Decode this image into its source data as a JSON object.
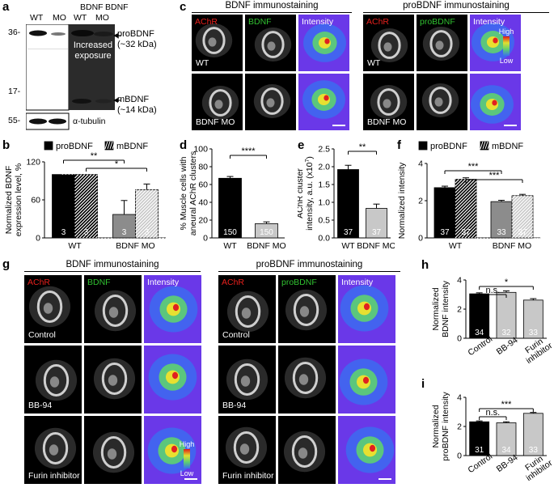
{
  "panels": {
    "a": {
      "label": "a",
      "lanes": [
        "WT",
        "MO",
        "WT",
        "MO"
      ],
      "bdnf_header": "BDNF",
      "markers": [
        "36-",
        "17-",
        "55-"
      ],
      "exposure_text": [
        "Increased",
        "exposure"
      ],
      "bands": [
        {
          "name": "proBDNF",
          "size": "(~32 kDa)"
        },
        {
          "name": "mBDNF",
          "size": "(~14 kDa)"
        },
        {
          "name": "α-tubulin",
          "size": ""
        }
      ]
    },
    "c": {
      "label": "c",
      "groups": [
        {
          "title": "BDNF immunostaining",
          "channels": [
            "AChR",
            "BDNF",
            "Intensity"
          ]
        },
        {
          "title": "proBDNF immunostaining",
          "channels": [
            "AChR",
            "proBDNF",
            "Intensity"
          ]
        }
      ],
      "rows": [
        "WT",
        "BDNF MO"
      ],
      "scale": {
        "high": "High",
        "low": "Low"
      }
    },
    "g": {
      "label": "g",
      "groups": [
        {
          "title": "BDNF immunostaining",
          "channels": [
            "AChR",
            "BDNF",
            "Intensity"
          ]
        },
        {
          "title": "proBDNF immunostaining",
          "channels": [
            "AChR",
            "proBDNF",
            "Intensity"
          ]
        }
      ],
      "rows": [
        "Control",
        "BB-94",
        "Furin inhibitor"
      ],
      "scale": {
        "high": "High",
        "low": "Low"
      }
    }
  },
  "chart_data": [
    {
      "panel": "b",
      "type": "bar",
      "ylabel": [
        "Normalized BDNF",
        "expression level, %"
      ],
      "ylim": [
        0,
        120
      ],
      "yticks": [
        0,
        60,
        120
      ],
      "legend": [
        "proBDNF",
        "mBDNF"
      ],
      "categories": [
        "WT",
        "BDNF MO"
      ],
      "series": [
        {
          "name": "proBDNF",
          "values": [
            100,
            37
          ],
          "errors": [
            0,
            22
          ],
          "n": [
            3,
            3
          ]
        },
        {
          "name": "mBDNF",
          "values": [
            100,
            76
          ],
          "errors": [
            0,
            9
          ],
          "n": [
            3,
            3
          ]
        }
      ],
      "significance": [
        "**",
        "*"
      ]
    },
    {
      "panel": "d",
      "type": "bar",
      "ylabel": [
        "% Muscle cells with",
        "aneural AChR clusters"
      ],
      "ylim": [
        0,
        100
      ],
      "yticks": [
        0,
        20,
        40,
        60,
        80,
        100
      ],
      "categories": [
        "WT",
        "BDNF MO"
      ],
      "values": [
        67,
        16
      ],
      "errors": [
        2,
        2
      ],
      "n": [
        150,
        150
      ],
      "significance": [
        "****"
      ]
    },
    {
      "panel": "e",
      "type": "bar",
      "ylabel": [
        "AChR cluster",
        "intensity, a.u. (x10",
        "7",
        ")"
      ],
      "ylim": [
        0,
        2.5
      ],
      "yticks": [
        0.0,
        0.5,
        1.0,
        1.5,
        2.0,
        2.5
      ],
      "ytick_labels": [
        "0.0",
        "0.5",
        "1.0",
        "1.5",
        "2.0",
        "2.5"
      ],
      "categories": [
        "WT",
        "BDNF MO"
      ],
      "values": [
        1.92,
        0.83
      ],
      "errors": [
        0.12,
        0.12
      ],
      "n": [
        37,
        37
      ],
      "significance": [
        "**"
      ]
    },
    {
      "panel": "f",
      "type": "bar",
      "ylabel": [
        "Normalized intensity"
      ],
      "ylim": [
        0,
        4
      ],
      "yticks": [
        0,
        2,
        4
      ],
      "legend": [
        "proBDNF",
        "mBDNF"
      ],
      "categories": [
        "WT",
        "BDNF MO"
      ],
      "series": [
        {
          "name": "proBDNF",
          "values": [
            2.7,
            1.95
          ],
          "errors": [
            0.08,
            0.07
          ],
          "n": [
            37,
            33
          ]
        },
        {
          "name": "mBDNF",
          "values": [
            3.15,
            2.27
          ],
          "errors": [
            0.08,
            0.07
          ],
          "n": [
            37,
            37
          ]
        }
      ],
      "significance": [
        "***",
        "***"
      ]
    },
    {
      "panel": "h",
      "type": "bar",
      "ylabel": [
        "Normalized",
        "BDNF intensity"
      ],
      "ylim": [
        0,
        4
      ],
      "yticks": [
        0,
        2,
        4
      ],
      "categories": [
        "Control",
        "BB-94",
        [
          "Furin",
          "inhibitor"
        ]
      ],
      "values": [
        3.05,
        3.15,
        2.62
      ],
      "errors": [
        0.07,
        0.1,
        0.1
      ],
      "n": [
        34,
        32,
        33
      ],
      "significance": [
        "n.s.",
        "*"
      ]
    },
    {
      "panel": "i",
      "type": "bar",
      "ylabel": [
        "Normalized",
        "proBDNF intensity"
      ],
      "ylim": [
        0,
        4
      ],
      "yticks": [
        0,
        2,
        4
      ],
      "categories": [
        "Control",
        "BB-94",
        [
          "Furin",
          "inhibitor"
        ]
      ],
      "values": [
        2.32,
        2.25,
        2.9
      ],
      "errors": [
        0.06,
        0.07,
        0.06
      ],
      "n": [
        31,
        34,
        33
      ],
      "significance": [
        "n.s.",
        "***"
      ]
    }
  ],
  "colors": {
    "red": "#e8201c",
    "green": "#30c030",
    "black": "#000000",
    "grey": "#8c8c8c",
    "lightgrey": "#c8c8c8"
  }
}
